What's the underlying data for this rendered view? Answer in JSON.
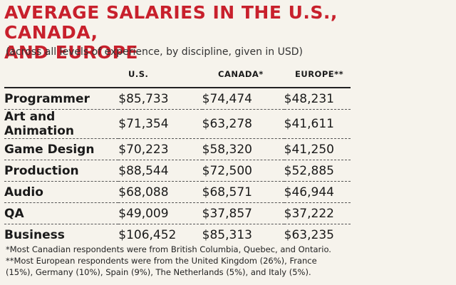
{
  "title_line1": "AVERAGE SALARIES IN THE U.S., CANADA,",
  "title_line2": "AND EUROPE",
  "subtitle": "(across all levels of experience, by discipline, given in USD)",
  "notes": [
    "*Most Canadian respondents were from British Columbia, Quebec, and Ontario.",
    "**Most European respondents were from the United Kingdom (26%), France",
    "(15%), Germany (10%), Spain (9%), The Netherlands (5%), and Italy (5%)."
  ],
  "colors": {
    "title": "#c8202c",
    "background": "#f6f3ec"
  },
  "chart_data": {
    "type": "table",
    "title": "AVERAGE SALARIES IN THE U.S., CANADA, AND EUROPE",
    "subtitle": "(across all levels of experience, by discipline, given in USD)",
    "columns": [
      "U.S.",
      "CANADA*",
      "EUROPE**"
    ],
    "rows": [
      {
        "label": "Programmer",
        "values": [
          "$85,733",
          "$74,474",
          "$48,231"
        ]
      },
      {
        "label": "Art and Animation",
        "values": [
          "$71,354",
          "$63,278",
          "$41,611"
        ]
      },
      {
        "label": "Game Design",
        "values": [
          "$70,223",
          "$58,320",
          "$41,250"
        ]
      },
      {
        "label": "Production",
        "values": [
          "$88,544",
          "$72,500",
          "$52,885"
        ]
      },
      {
        "label": "Audio",
        "values": [
          "$68,088",
          "$68,571",
          "$46,944"
        ]
      },
      {
        "label": "QA",
        "values": [
          "$49,009",
          "$37,857",
          "$37,222"
        ]
      },
      {
        "label": "Business",
        "values": [
          "$106,452",
          "$85,313",
          "$63,235"
        ]
      }
    ]
  }
}
